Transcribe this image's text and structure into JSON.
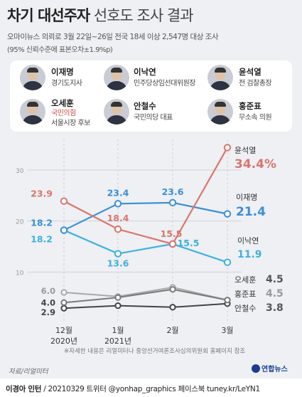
{
  "header": {
    "title_bold": "차기 대선주자",
    "title_rest": "선호도 조사 결과",
    "subtitle1": "오마이뉴스 의뢰로 3월 22일~26일 전국 18세 이상 2,547명 대상 조사",
    "subtitle2": "(95% 신뢰수준에 표본오차±1.9%p)"
  },
  "candidates": [
    {
      "name": "이재명",
      "role": "경기도지사"
    },
    {
      "name": "이낙연",
      "role": "민주당상임선대위원장"
    },
    {
      "name": "윤석열",
      "role": "전 검찰총장"
    },
    {
      "name": "오세훈",
      "role": "국민의힘",
      "role2": "서울시장 후보"
    },
    {
      "name": "안철수",
      "role": "국민의당 대표"
    },
    {
      "name": "홍준표",
      "role": "무소속 의원"
    }
  ],
  "chart_data": {
    "type": "line",
    "categories": [
      "12월\n2020년",
      "1월\n2021년",
      "2월",
      "3월"
    ],
    "yticks": [
      10,
      20,
      30
    ],
    "ylim": [
      0,
      36
    ],
    "series": [
      {
        "name": "윤석열",
        "values": [
          23.9,
          18.4,
          15.5,
          34.4
        ],
        "color": "#d9756b",
        "labels": [
          "23.9",
          "18.4",
          "15.5",
          ""
        ],
        "end_label": "34.4%"
      },
      {
        "name": "이재명",
        "values": [
          18.2,
          23.4,
          23.6,
          21.4
        ],
        "color": "#3a8fd6",
        "labels": [
          "18.2",
          "23.4",
          "23.6",
          ""
        ],
        "end_label": "21.4"
      },
      {
        "name": "이낙연",
        "values": [
          18.2,
          13.6,
          15.5,
          11.9
        ],
        "color": "#3fb0df",
        "labels": [
          "18.2",
          "13.6",
          "15.5",
          ""
        ],
        "end_label": "11.9"
      },
      {
        "name": "오세훈",
        "values": [
          4.0,
          5.0,
          6.6,
          4.5
        ],
        "color": "#7a7a7a",
        "labels": [
          "4.0",
          "",
          "",
          ""
        ],
        "end_label": "4.5"
      },
      {
        "name": "홍준표",
        "values": [
          6.0,
          5.2,
          7.0,
          4.5
        ],
        "color": "#a8a8a8",
        "labels": [
          "6.0",
          "",
          "",
          ""
        ],
        "end_label": "4.5"
      },
      {
        "name": "안철수",
        "values": [
          2.9,
          3.4,
          3.1,
          3.8
        ],
        "color": "#444444",
        "labels": [
          "2.9",
          "",
          "",
          ""
        ],
        "end_label": "3.8"
      }
    ]
  },
  "note": "※자세한 내용은 리얼미터나 중앙선거여론조사심의위원회 홈페이지 참조",
  "source": "자료/리얼미터",
  "logo": "연합뉴스",
  "footer": {
    "author": "이경아 인턴",
    "rest": "/ 20210329 트위터 @yonhap_graphics 페이스북 tuney.kr/LeYN1"
  }
}
